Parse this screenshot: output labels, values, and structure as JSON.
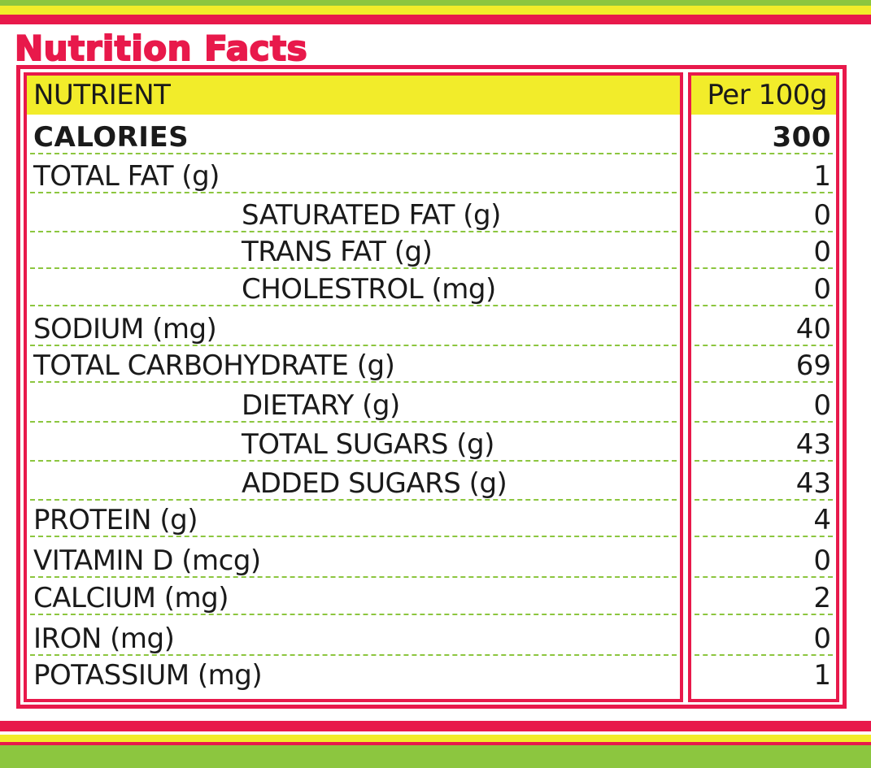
{
  "title": "Nutrition Facts",
  "header": {
    "nutrient_label": "NUTRIENT",
    "per_label": "Per 100g"
  },
  "rows": [
    {
      "name": "CALORIES",
      "value": "300",
      "indent": false,
      "bold": true
    },
    {
      "name": "TOTAL FAT (g)",
      "value": "1",
      "indent": false,
      "bold": false
    },
    {
      "name": "SATURATED FAT (g)",
      "value": "0",
      "indent": true,
      "bold": false
    },
    {
      "name": "TRANS FAT (g)",
      "value": "0",
      "indent": true,
      "bold": false
    },
    {
      "name": "CHOLESTROL (mg)",
      "value": "0",
      "indent": true,
      "bold": false
    },
    {
      "name": "SODIUM (mg)",
      "value": "40",
      "indent": false,
      "bold": false
    },
    {
      "name": "TOTAL CARBOHYDRATE (g)",
      "value": "69",
      "indent": false,
      "bold": false
    },
    {
      "name": "DIETARY (g)",
      "value": "0",
      "indent": true,
      "bold": false
    },
    {
      "name": "TOTAL SUGARS (g)",
      "value": "43",
      "indent": true,
      "bold": false
    },
    {
      "name": "ADDED SUGARS (g)",
      "value": "43",
      "indent": true,
      "bold": false
    },
    {
      "name": "PROTEIN (g)",
      "value": "4",
      "indent": false,
      "bold": false
    },
    {
      "name": "VITAMIN D (mcg)",
      "value": "0",
      "indent": false,
      "bold": false
    },
    {
      "name": "CALCIUM (mg)",
      "value": "2",
      "indent": false,
      "bold": false
    },
    {
      "name": "IRON (mg)",
      "value": "0",
      "indent": false,
      "bold": false
    },
    {
      "name": "POTASSIUM (mg)",
      "value": "1",
      "indent": false,
      "bold": false
    }
  ],
  "colors": {
    "accent_red": "#e8194b",
    "header_yellow": "#f2ec2a",
    "divider_green": "#8cc63f"
  }
}
